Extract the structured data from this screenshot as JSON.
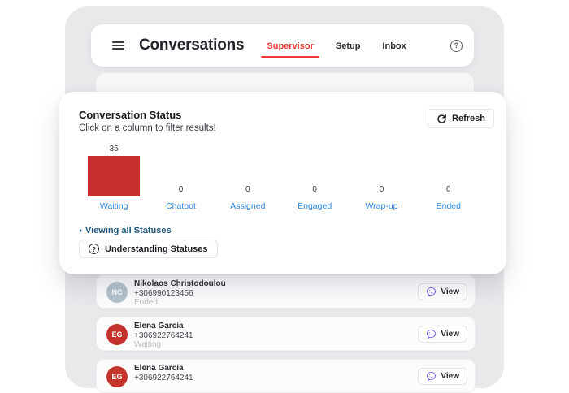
{
  "topbar": {
    "title": "Conversations",
    "tabs": [
      {
        "label": "Supervisor",
        "active": true
      },
      {
        "label": "Setup",
        "active": false
      },
      {
        "label": "Inbox",
        "active": false
      }
    ],
    "help_icon": "question-circle"
  },
  "status_card": {
    "title": "Conversation Status",
    "subtitle": "Click on a column to filter results!",
    "refresh_label": "Refresh",
    "viewing_link": "Viewing all Statuses",
    "understanding_button": "Understanding Statuses"
  },
  "chart_data": {
    "type": "bar",
    "categories": [
      "Waiting",
      "Chatbot",
      "Assigned",
      "Engaged",
      "Wrap-up",
      "Ended"
    ],
    "values": [
      35,
      0,
      0,
      0,
      0,
      0
    ],
    "title": "Conversation Status",
    "xlabel": "",
    "ylabel": "",
    "ylim": [
      0,
      35
    ],
    "grid": false,
    "legend": false,
    "value_labels": true,
    "bar_color": "#c62f2f",
    "category_label_color": "#2b87e0"
  },
  "conversation_rows": [
    {
      "initials": "NC",
      "name": "Nikolaos Christodoulou",
      "phone": "+306990123456",
      "status": "Ended",
      "avatar_color": "#b3c2cb",
      "action": "View"
    },
    {
      "initials": "EG",
      "name": "Elena Garcia",
      "phone": "+306922764241",
      "status": "Waiting",
      "avatar_color": "#c5332d",
      "action": "View"
    },
    {
      "initials": "EG",
      "name": "Elena Garcia",
      "phone": "+306922764241",
      "status": "",
      "avatar_color": "#c5332d",
      "action": "View"
    }
  ],
  "colors": {
    "frame": "#e9e9ec",
    "accent_red": "#ef3b34",
    "bar_red": "#c62f2f",
    "link_blue": "#2b87e0",
    "dark_link": "#20587e",
    "viber_purple": "#7360f2"
  }
}
